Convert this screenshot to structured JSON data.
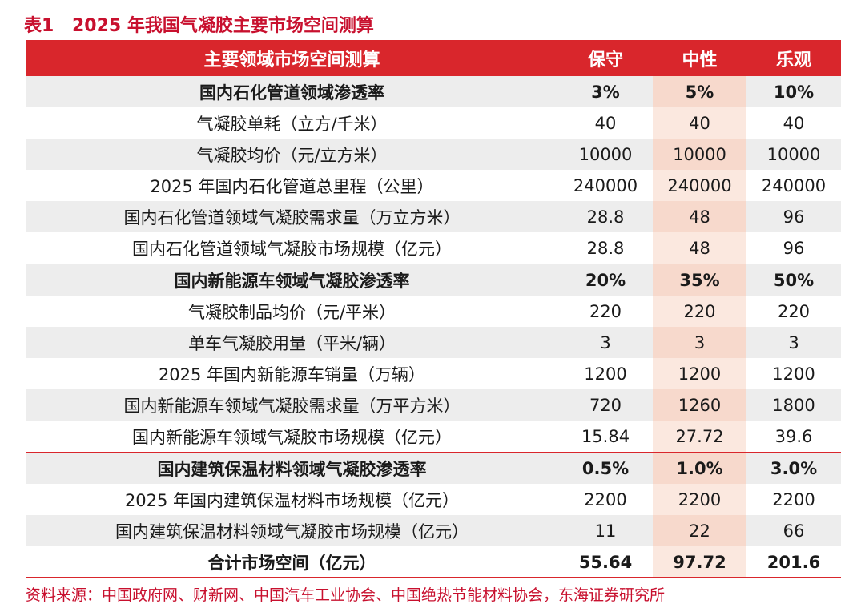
{
  "title": {
    "number": "表1",
    "text": "2025 年我国气凝胶主要市场空间测算"
  },
  "colors": {
    "accent": "#d9262c",
    "highlight_column": "#fbe8df",
    "row_shade": "#ededed"
  },
  "table": {
    "headers": [
      "主要领域市场空间测算",
      "保守",
      "中性",
      "乐观"
    ],
    "rows": [
      {
        "label": "国内石化管道领域渗透率",
        "values": [
          "3%",
          "5%",
          "10%"
        ]
      },
      {
        "label": "气凝胶单耗（立方/千米）",
        "values": [
          "40",
          "40",
          "40"
        ]
      },
      {
        "label": "气凝胶均价（元/立方米）",
        "values": [
          "10000",
          "10000",
          "10000"
        ]
      },
      {
        "label": "2025 年国内石化管道总里程（公里）",
        "values": [
          "240000",
          "240000",
          "240000"
        ]
      },
      {
        "label": "国内石化管道领域气凝胶需求量（万立方米）",
        "values": [
          "28.8",
          "48",
          "96"
        ]
      },
      {
        "label": "国内石化管道领域气凝胶市场规模（亿元）",
        "values": [
          "28.8",
          "48",
          "96"
        ]
      },
      {
        "label": "国内新能源车领域气凝胶渗透率",
        "values": [
          "20%",
          "35%",
          "50%"
        ]
      },
      {
        "label": "气凝胶制品均价（元/平米）",
        "values": [
          "220",
          "220",
          "220"
        ]
      },
      {
        "label": "单车气凝胶用量（平米/辆）",
        "values": [
          "3",
          "3",
          "3"
        ]
      },
      {
        "label": "2025 年国内新能源车销量（万辆）",
        "values": [
          "1200",
          "1200",
          "1200"
        ]
      },
      {
        "label": "国内新能源车领域气凝胶需求量（万平方米）",
        "values": [
          "720",
          "1260",
          "1800"
        ]
      },
      {
        "label": "国内新能源车领域气凝胶市场规模（亿元）",
        "values": [
          "15.84",
          "27.72",
          "39.6"
        ]
      },
      {
        "label": "国内建筑保温材料领域气凝胶渗透率",
        "values": [
          "0.5%",
          "1.0%",
          "3.0%"
        ]
      },
      {
        "label": "2025 年国内建筑保温材料市场规模（亿元）",
        "values": [
          "2200",
          "2200",
          "2200"
        ]
      },
      {
        "label": "国内建筑保温材料领域气凝胶市场规模（亿元）",
        "values": [
          "11",
          "22",
          "66"
        ]
      },
      {
        "label": "合计市场空间（亿元）",
        "values": [
          "55.64",
          "97.72",
          "201.6"
        ]
      }
    ]
  },
  "source": "资料来源：中国政府网、财新网、中国汽车工业协会、中国绝热节能材料协会，东海证券研究所"
}
